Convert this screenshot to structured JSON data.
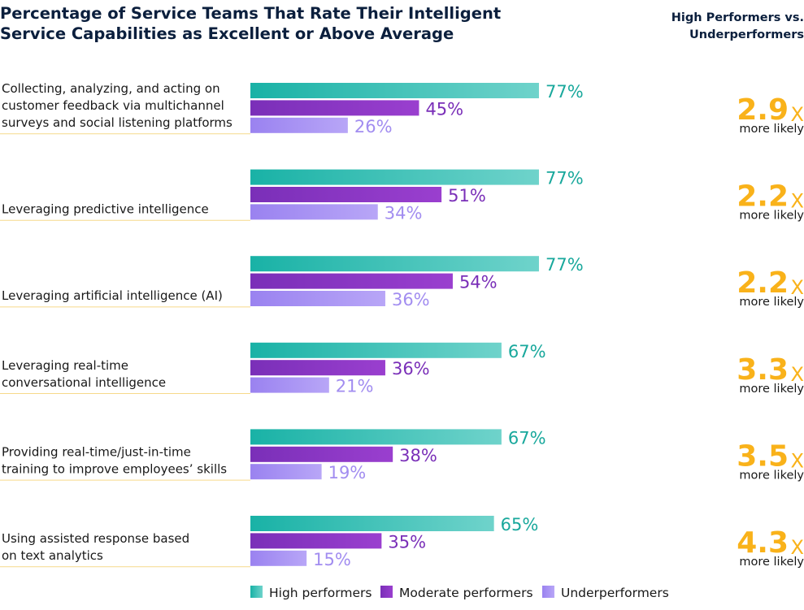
{
  "chart_data": {
    "type": "bar",
    "orientation": "horizontal",
    "title": "Percentage of Service Teams That Rate Their Intelligent Service Capabilities as Excellent or Above Average",
    "ratio_header": "High Performers vs. Underperformers",
    "xlim": [
      0,
      100
    ],
    "value_suffix": "%",
    "categories": [
      [
        "Collecting, analyzing, and acting on",
        "customer feedback via multichannel",
        "surveys and social listening platforms"
      ],
      [
        "Leveraging predictive intelligence"
      ],
      [
        "Leveraging artificial intelligence (AI)"
      ],
      [
        "Leveraging real-time",
        "conversational intelligence"
      ],
      [
        "Providing real-time/just-in-time",
        "training to improve employees’ skills"
      ],
      [
        "Using assisted response based",
        "on text analytics"
      ]
    ],
    "series": [
      {
        "name": "High performers",
        "color": "#19b2a6",
        "color_light": "#6fd3cb",
        "label_color": "#19a89c",
        "values": [
          77,
          77,
          77,
          67,
          67,
          65
        ]
      },
      {
        "name": "Moderate performers",
        "color": "#7a2fb8",
        "color_light": "#9a3fcf",
        "label_color": "#7a2fb8",
        "values": [
          45,
          51,
          54,
          36,
          38,
          35
        ]
      },
      {
        "name": "Underperformers",
        "color": "#9a82f0",
        "color_light": "#b8a6f7",
        "label_color": "#a28df0",
        "values": [
          26,
          34,
          36,
          21,
          19,
          15
        ]
      }
    ],
    "ratios": [
      "2.9",
      "2.2",
      "2.2",
      "3.3",
      "3.5",
      "4.3"
    ],
    "ratio_unit": "X",
    "ratio_subtext": "more likely",
    "legend_position": "bottom"
  }
}
